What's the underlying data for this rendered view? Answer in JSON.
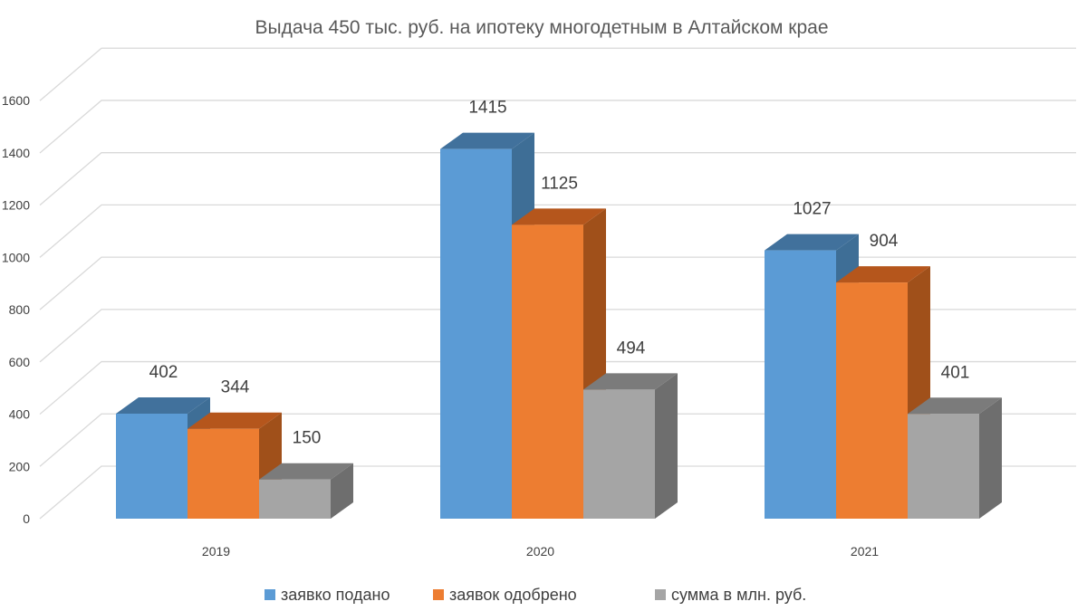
{
  "chart_data": {
    "type": "bar",
    "title": "Выдача 450 тыс. руб. на ипотеку многодетным в Алтайском крае",
    "categories": [
      "2019",
      "2020",
      "2021"
    ],
    "series": [
      {
        "name": "заявко подано",
        "values": [
          402,
          1415,
          1027
        ],
        "color": "#5B9BD5",
        "top": "#41719C",
        "side": "#3E6E96"
      },
      {
        "name": "заявок одобрено",
        "values": [
          344,
          1125,
          904
        ],
        "color": "#ED7D31",
        "top": "#B5561C",
        "side": "#A0501A"
      },
      {
        "name": "сумма в млн. руб.",
        "values": [
          150,
          494,
          401
        ],
        "color": "#A5A5A5",
        "top": "#7B7B7B",
        "side": "#6E6E6E"
      }
    ],
    "yticks": [
      "0",
      "200",
      "400",
      "600",
      "800",
      "1000",
      "1200",
      "1400",
      "1600"
    ],
    "ylim": [
      0,
      1600
    ],
    "grid": true,
    "legend_position": "bottom"
  }
}
